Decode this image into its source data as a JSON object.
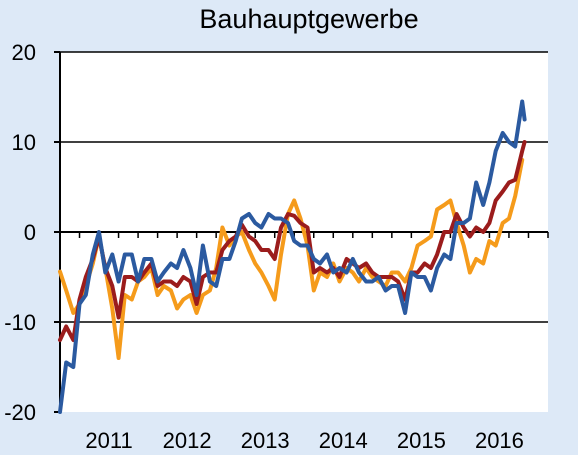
{
  "chart_data": {
    "type": "line",
    "title": "Bauhauptgewerbe",
    "xlabel": "",
    "ylabel": "",
    "ylim": [
      -20,
      20
    ],
    "yticks": [
      -20,
      -10,
      0,
      10,
      20
    ],
    "xlim": [
      2010.5,
      2016.75
    ],
    "year_labels": [
      {
        "label": "2011",
        "x": 2011.0
      },
      {
        "label": "2012",
        "x": 2012.0
      },
      {
        "label": "2013",
        "x": 2013.0
      },
      {
        "label": "2014",
        "x": 2014.0
      },
      {
        "label": "2015",
        "x": 2015.0
      },
      {
        "label": "2016",
        "x": 2016.0
      }
    ],
    "grid": "horizontal",
    "legend": "none",
    "series": [
      {
        "color": "#f59b1b",
        "values": [
          [
            2010.5,
            -4.4
          ],
          [
            2010.58,
            -6.5
          ],
          [
            2010.67,
            -9.0
          ],
          [
            2010.75,
            -8.0
          ],
          [
            2010.83,
            -6.0
          ],
          [
            2010.92,
            -3.5
          ],
          [
            2011.0,
            -0.5
          ],
          [
            2011.08,
            -4.0
          ],
          [
            2011.17,
            -8.5
          ],
          [
            2011.25,
            -14.0
          ],
          [
            2011.33,
            -7.0
          ],
          [
            2011.42,
            -7.5
          ],
          [
            2011.5,
            -5.5
          ],
          [
            2011.58,
            -5.0
          ],
          [
            2011.67,
            -4.0
          ],
          [
            2011.75,
            -7.0
          ],
          [
            2011.83,
            -6.0
          ],
          [
            2011.92,
            -6.5
          ],
          [
            2012.0,
            -8.5
          ],
          [
            2012.08,
            -7.5
          ],
          [
            2012.17,
            -7.0
          ],
          [
            2012.25,
            -9.0
          ],
          [
            2012.33,
            -7.0
          ],
          [
            2012.42,
            -6.5
          ],
          [
            2012.5,
            -4.0
          ],
          [
            2012.58,
            0.5
          ],
          [
            2012.67,
            -1.5
          ],
          [
            2012.75,
            -0.5
          ],
          [
            2012.83,
            0.0
          ],
          [
            2012.92,
            -2.0
          ],
          [
            2013.0,
            -3.5
          ],
          [
            2013.08,
            -4.5
          ],
          [
            2013.17,
            -6.0
          ],
          [
            2013.25,
            -7.5
          ],
          [
            2013.33,
            -2.5
          ],
          [
            2013.42,
            2.0
          ],
          [
            2013.5,
            3.5
          ],
          [
            2013.58,
            1.5
          ],
          [
            2013.67,
            -1.5
          ],
          [
            2013.75,
            -6.5
          ],
          [
            2013.83,
            -4.5
          ],
          [
            2013.92,
            -5.0
          ],
          [
            2014.0,
            -3.5
          ],
          [
            2014.08,
            -5.5
          ],
          [
            2014.17,
            -4.0
          ],
          [
            2014.25,
            -4.5
          ],
          [
            2014.33,
            -5.5
          ],
          [
            2014.42,
            -4.0
          ],
          [
            2014.5,
            -5.0
          ],
          [
            2014.58,
            -5.5
          ],
          [
            2014.67,
            -6.0
          ],
          [
            2014.75,
            -4.5
          ],
          [
            2014.83,
            -4.5
          ],
          [
            2014.92,
            -5.5
          ],
          [
            2015.0,
            -4.0
          ],
          [
            2015.08,
            -1.5
          ],
          [
            2015.17,
            -1.0
          ],
          [
            2015.25,
            -0.5
          ],
          [
            2015.33,
            2.5
          ],
          [
            2015.42,
            3.0
          ],
          [
            2015.5,
            3.5
          ],
          [
            2015.58,
            1.0
          ],
          [
            2015.67,
            -1.5
          ],
          [
            2015.75,
            -4.5
          ],
          [
            2015.83,
            -3.0
          ],
          [
            2015.92,
            -3.5
          ],
          [
            2016.0,
            -1.0
          ],
          [
            2016.08,
            -1.5
          ],
          [
            2016.17,
            1.0
          ],
          [
            2016.25,
            1.5
          ],
          [
            2016.33,
            4.0
          ],
          [
            2016.42,
            8.0
          ]
        ]
      },
      {
        "color": "#9b1c1c",
        "values": [
          [
            2010.5,
            -12.0
          ],
          [
            2010.58,
            -10.5
          ],
          [
            2010.67,
            -12.0
          ],
          [
            2010.75,
            -7.5
          ],
          [
            2010.83,
            -5.0
          ],
          [
            2010.92,
            -3.0
          ],
          [
            2011.0,
            -0.5
          ],
          [
            2011.08,
            -4.0
          ],
          [
            2011.17,
            -6.0
          ],
          [
            2011.25,
            -9.5
          ],
          [
            2011.33,
            -5.0
          ],
          [
            2011.42,
            -5.0
          ],
          [
            2011.5,
            -5.5
          ],
          [
            2011.58,
            -4.5
          ],
          [
            2011.67,
            -3.5
          ],
          [
            2011.75,
            -6.0
          ],
          [
            2011.83,
            -5.5
          ],
          [
            2011.92,
            -5.5
          ],
          [
            2012.0,
            -6.0
          ],
          [
            2012.08,
            -5.0
          ],
          [
            2012.17,
            -5.5
          ],
          [
            2012.25,
            -8.0
          ],
          [
            2012.33,
            -5.0
          ],
          [
            2012.42,
            -4.5
          ],
          [
            2012.5,
            -4.5
          ],
          [
            2012.58,
            -2.0
          ],
          [
            2012.67,
            -1.0
          ],
          [
            2012.75,
            -0.5
          ],
          [
            2012.83,
            0.8
          ],
          [
            2012.92,
            -0.5
          ],
          [
            2013.0,
            -1.0
          ],
          [
            2013.08,
            -2.0
          ],
          [
            2013.17,
            -2.0
          ],
          [
            2013.25,
            -3.0
          ],
          [
            2013.33,
            0.5
          ],
          [
            2013.42,
            2.0
          ],
          [
            2013.5,
            1.8
          ],
          [
            2013.58,
            1.0
          ],
          [
            2013.67,
            0.5
          ],
          [
            2013.75,
            -4.5
          ],
          [
            2013.83,
            -4.0
          ],
          [
            2013.92,
            -4.5
          ],
          [
            2014.0,
            -4.0
          ],
          [
            2014.08,
            -5.0
          ],
          [
            2014.17,
            -3.0
          ],
          [
            2014.25,
            -3.5
          ],
          [
            2014.33,
            -4.0
          ],
          [
            2014.42,
            -3.5
          ],
          [
            2014.5,
            -4.5
          ],
          [
            2014.58,
            -5.0
          ],
          [
            2014.67,
            -5.0
          ],
          [
            2014.75,
            -5.0
          ],
          [
            2014.83,
            -5.5
          ],
          [
            2014.92,
            -7.5
          ],
          [
            2015.0,
            -4.5
          ],
          [
            2015.08,
            -4.5
          ],
          [
            2015.17,
            -3.5
          ],
          [
            2015.25,
            -4.0
          ],
          [
            2015.33,
            -2.5
          ],
          [
            2015.42,
            0.0
          ],
          [
            2015.5,
            0.0
          ],
          [
            2015.58,
            2.0
          ],
          [
            2015.67,
            0.5
          ],
          [
            2015.75,
            -0.5
          ],
          [
            2015.83,
            0.5
          ],
          [
            2015.92,
            0.0
          ],
          [
            2016.0,
            1.0
          ],
          [
            2016.08,
            3.5
          ],
          [
            2016.17,
            4.5
          ],
          [
            2016.25,
            5.5
          ],
          [
            2016.33,
            5.8
          ],
          [
            2016.42,
            9.0
          ],
          [
            2016.45,
            10.0
          ]
        ]
      },
      {
        "color": "#2b5aa0",
        "values": [
          [
            2010.5,
            -20.0
          ],
          [
            2010.58,
            -14.5
          ],
          [
            2010.67,
            -15.0
          ],
          [
            2010.75,
            -8.0
          ],
          [
            2010.83,
            -7.0
          ],
          [
            2010.92,
            -2.5
          ],
          [
            2011.0,
            0.0
          ],
          [
            2011.08,
            -4.5
          ],
          [
            2011.17,
            -2.5
          ],
          [
            2011.25,
            -5.5
          ],
          [
            2011.33,
            -2.5
          ],
          [
            2011.42,
            -2.5
          ],
          [
            2011.5,
            -5.5
          ],
          [
            2011.58,
            -3.0
          ],
          [
            2011.67,
            -3.0
          ],
          [
            2011.75,
            -5.5
          ],
          [
            2011.83,
            -4.5
          ],
          [
            2011.92,
            -3.5
          ],
          [
            2012.0,
            -4.0
          ],
          [
            2012.08,
            -2.0
          ],
          [
            2012.17,
            -4.0
          ],
          [
            2012.25,
            -7.0
          ],
          [
            2012.33,
            -1.5
          ],
          [
            2012.42,
            -5.5
          ],
          [
            2012.5,
            -6.0
          ],
          [
            2012.58,
            -3.0
          ],
          [
            2012.67,
            -3.0
          ],
          [
            2012.75,
            -1.0
          ],
          [
            2012.83,
            1.5
          ],
          [
            2012.92,
            2.0
          ],
          [
            2013.0,
            1.0
          ],
          [
            2013.08,
            0.5
          ],
          [
            2013.17,
            2.0
          ],
          [
            2013.25,
            1.5
          ],
          [
            2013.33,
            1.5
          ],
          [
            2013.42,
            1.0
          ],
          [
            2013.5,
            -1.0
          ],
          [
            2013.58,
            -1.5
          ],
          [
            2013.67,
            -1.5
          ],
          [
            2013.75,
            -3.0
          ],
          [
            2013.83,
            -3.5
          ],
          [
            2013.92,
            -2.5
          ],
          [
            2014.0,
            -4.5
          ],
          [
            2014.08,
            -4.0
          ],
          [
            2014.17,
            -4.5
          ],
          [
            2014.25,
            -3.0
          ],
          [
            2014.33,
            -4.5
          ],
          [
            2014.42,
            -5.5
          ],
          [
            2014.5,
            -5.5
          ],
          [
            2014.58,
            -5.0
          ],
          [
            2014.67,
            -6.5
          ],
          [
            2014.75,
            -6.0
          ],
          [
            2014.83,
            -6.0
          ],
          [
            2014.92,
            -9.0
          ],
          [
            2015.0,
            -4.5
          ],
          [
            2015.08,
            -5.0
          ],
          [
            2015.17,
            -5.0
          ],
          [
            2015.25,
            -6.5
          ],
          [
            2015.33,
            -4.0
          ],
          [
            2015.42,
            -2.5
          ],
          [
            2015.5,
            -3.0
          ],
          [
            2015.58,
            1.0
          ],
          [
            2015.67,
            1.0
          ],
          [
            2015.75,
            1.5
          ],
          [
            2015.83,
            5.5
          ],
          [
            2015.92,
            3.0
          ],
          [
            2016.0,
            5.5
          ],
          [
            2016.08,
            9.0
          ],
          [
            2016.17,
            11.0
          ],
          [
            2016.25,
            10.0
          ],
          [
            2016.33,
            9.5
          ],
          [
            2016.42,
            14.5
          ],
          [
            2016.45,
            12.5
          ]
        ]
      }
    ]
  }
}
